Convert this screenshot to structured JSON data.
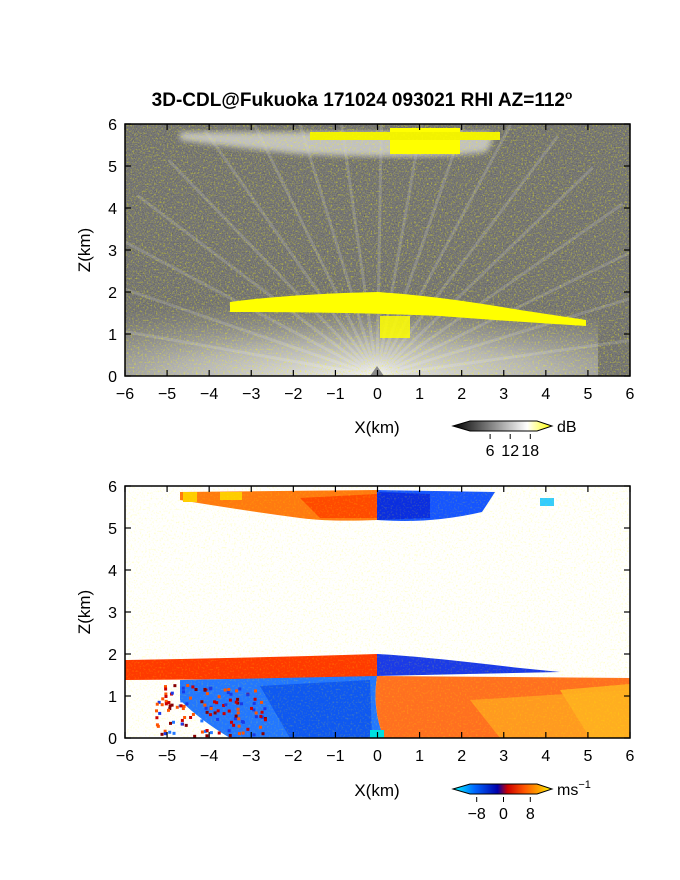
{
  "chart_data": [
    {
      "type": "heatmap",
      "panel": "reflectivity",
      "title": "3D-CDL@Fukuoka 171024 093021 RHI AZ=112",
      "title_superscript": "o",
      "xlabel": "X(km)",
      "ylabel": "Z(km)",
      "xlim": [
        -6,
        6
      ],
      "ylim": [
        0,
        6
      ],
      "xticks": [
        -6,
        -5,
        -4,
        -3,
        -2,
        -1,
        0,
        1,
        2,
        3,
        4,
        5,
        6
      ],
      "yticks": [
        0,
        1,
        2,
        3,
        4,
        5,
        6
      ],
      "colorbar": {
        "unit": "dB",
        "ticks": [
          6,
          12,
          18
        ],
        "range": [
          0,
          20
        ],
        "colors": [
          "#000000",
          "#ffffff",
          "#ffff00"
        ]
      },
      "features": [
        {
          "name": "upper cloud layer",
          "x_range": [
            -5,
            2.8
          ],
          "z_range": [
            5.3,
            5.8
          ],
          "max_dB": 18
        },
        {
          "name": "boundary layer top",
          "x_range": [
            -6,
            5
          ],
          "z_range": [
            1.3,
            1.9
          ],
          "max_dB": 18
        }
      ]
    },
    {
      "type": "heatmap",
      "panel": "doppler velocity",
      "xlabel": "X(km)",
      "ylabel": "Z(km)",
      "xlim": [
        -6,
        6
      ],
      "ylim": [
        0,
        6
      ],
      "xticks": [
        -6,
        -5,
        -4,
        -3,
        -2,
        -1,
        0,
        1,
        2,
        3,
        4,
        5,
        6
      ],
      "yticks": [
        0,
        1,
        2,
        3,
        4,
        5,
        6
      ],
      "colorbar": {
        "unit": "ms",
        "unit_superscript": "−1",
        "ticks": [
          "−8",
          "0",
          "8"
        ],
        "range": [
          -10,
          10
        ],
        "colors": [
          "#00ffff",
          "#0055ff",
          "#0000aa",
          "#cc0000",
          "#ff5500",
          "#ffaa00",
          "#ffff00"
        ]
      },
      "features": [
        {
          "name": "upper layer receding",
          "x_range": [
            -4.5,
            0
          ],
          "z_range": [
            5.3,
            5.9
          ],
          "velocity": 6
        },
        {
          "name": "upper layer approaching",
          "x_range": [
            0,
            2.8
          ],
          "z_range": [
            5.3,
            5.9
          ],
          "velocity": -7
        },
        {
          "name": "boundary layer approaching",
          "x_range": [
            -4,
            0
          ],
          "z_range": [
            0,
            1.4
          ],
          "velocity": -6
        },
        {
          "name": "boundary layer receding",
          "x_range": [
            0,
            6
          ],
          "z_range": [
            0,
            1.5
          ],
          "velocity": 5
        }
      ]
    }
  ]
}
